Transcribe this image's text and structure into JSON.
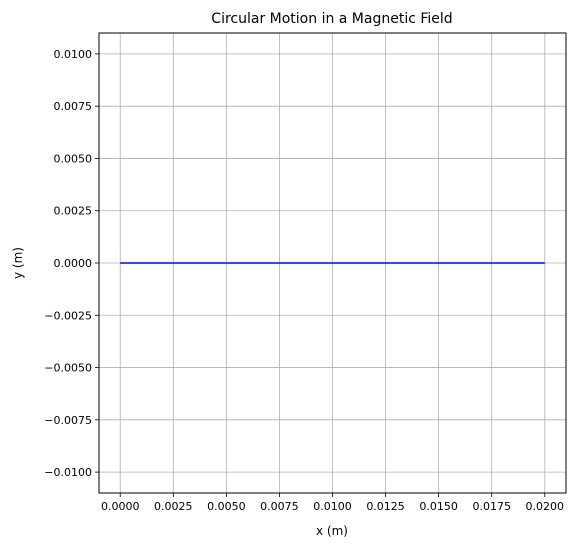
{
  "chart_data": {
    "type": "line",
    "title": "Circular Motion in a Magnetic Field",
    "xlabel": "x (m)",
    "ylabel": "y (m)",
    "xlim": [
      -0.001,
      0.021
    ],
    "ylim": [
      -0.011,
      0.011
    ],
    "grid": true,
    "x_ticks": [
      0.0,
      0.0025,
      0.005,
      0.0075,
      0.01,
      0.0125,
      0.015,
      0.0175,
      0.02
    ],
    "x_tick_labels": [
      "0.0000",
      "0.0025",
      "0.0050",
      "0.0075",
      "0.0100",
      "0.0125",
      "0.0150",
      "0.0175",
      "0.0200"
    ],
    "y_ticks": [
      0.01,
      0.0075,
      0.005,
      0.0025,
      0.0,
      -0.0025,
      -0.005,
      -0.0075,
      -0.01
    ],
    "y_tick_labels": [
      "0.0100",
      "0.0075",
      "0.0050",
      "0.0025",
      "0.0000",
      "−0.0025",
      "−0.0050",
      "−0.0075",
      "−0.0100"
    ],
    "series": [
      {
        "x": [
          0.0,
          0.02
        ],
        "y": [
          0.0,
          0.0
        ],
        "color": "#0000ff"
      }
    ]
  }
}
